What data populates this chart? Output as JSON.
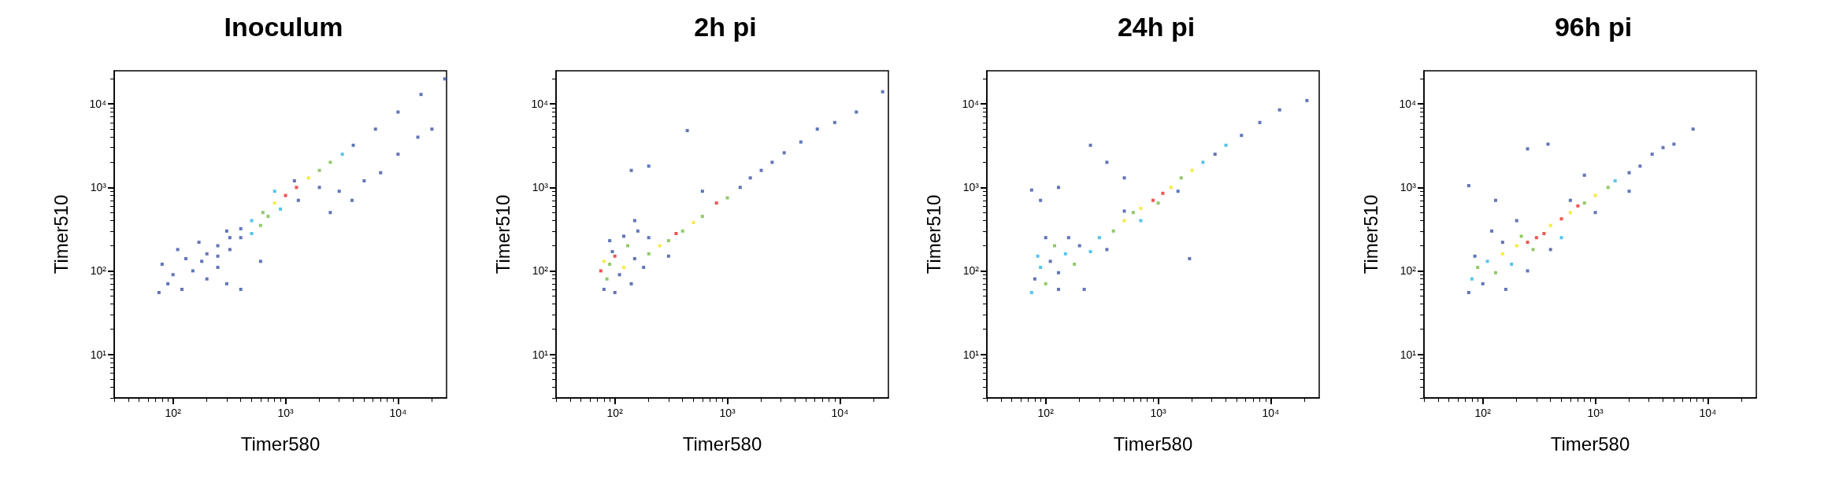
{
  "chart_data": [
    {
      "type": "scatter",
      "title": "Inoculum",
      "xlabel": "Timer580",
      "ylabel": "Timer510",
      "log": "xy",
      "marker": "square",
      "xlim": [
        30,
        27000
      ],
      "ylim": [
        3,
        25000
      ],
      "xticks": [
        {
          "value": 30,
          "label": null
        },
        {
          "value": 40,
          "label": null
        },
        {
          "value": 50,
          "label": null
        },
        {
          "value": 60,
          "label": null
        },
        {
          "value": 70,
          "label": null
        },
        {
          "value": 80,
          "label": null
        },
        {
          "value": 90,
          "label": null
        },
        {
          "value": 100,
          "label": "10²"
        },
        {
          "value": 200,
          "label": null
        },
        {
          "value": 300,
          "label": null
        },
        {
          "value": 400,
          "label": null
        },
        {
          "value": 500,
          "label": null
        },
        {
          "value": 600,
          "label": null
        },
        {
          "value": 700,
          "label": null
        },
        {
          "value": 800,
          "label": null
        },
        {
          "value": 900,
          "label": null
        },
        {
          "value": 1000,
          "label": "10³"
        },
        {
          "value": 2000,
          "label": null
        },
        {
          "value": 3000,
          "label": null
        },
        {
          "value": 4000,
          "label": null
        },
        {
          "value": 5000,
          "label": null
        },
        {
          "value": 6000,
          "label": null
        },
        {
          "value": 7000,
          "label": null
        },
        {
          "value": 8000,
          "label": null
        },
        {
          "value": 9000,
          "label": null
        },
        {
          "value": 10000,
          "label": "10⁴"
        },
        {
          "value": 20000,
          "label": null
        }
      ],
      "yticks": [
        {
          "value": 3,
          "label": null
        },
        {
          "value": 4,
          "label": null
        },
        {
          "value": 5,
          "label": null
        },
        {
          "value": 6,
          "label": null
        },
        {
          "value": 7,
          "label": null
        },
        {
          "value": 8,
          "label": null
        },
        {
          "value": 9,
          "label": null
        },
        {
          "value": 10,
          "label": "10¹"
        },
        {
          "value": 20,
          "label": null
        },
        {
          "value": 30,
          "label": null
        },
        {
          "value": 40,
          "label": null
        },
        {
          "value": 50,
          "label": null
        },
        {
          "value": 60,
          "label": null
        },
        {
          "value": 70,
          "label": null
        },
        {
          "value": 80,
          "label": null
        },
        {
          "value": 90,
          "label": null
        },
        {
          "value": 100,
          "label": "10²"
        },
        {
          "value": 200,
          "label": null
        },
        {
          "value": 300,
          "label": null
        },
        {
          "value": 400,
          "label": null
        },
        {
          "value": 500,
          "label": null
        },
        {
          "value": 600,
          "label": null
        },
        {
          "value": 700,
          "label": null
        },
        {
          "value": 800,
          "label": null
        },
        {
          "value": 900,
          "label": null
        },
        {
          "value": 1000,
          "label": "10³"
        },
        {
          "value": 2000,
          "label": null
        },
        {
          "value": 3000,
          "label": null
        },
        {
          "value": 4000,
          "label": null
        },
        {
          "value": 5000,
          "label": null
        },
        {
          "value": 6000,
          "label": null
        },
        {
          "value": 7000,
          "label": null
        },
        {
          "value": 8000,
          "label": null
        },
        {
          "value": 9000,
          "label": null
        },
        {
          "value": 10000,
          "label": "10⁴"
        },
        {
          "value": 20000,
          "label": null
        }
      ],
      "x": [
        26000,
        16000,
        10000,
        6300,
        4000,
        3200,
        2500,
        2000,
        1600,
        1250,
        1000,
        800,
        630,
        500,
        400,
        320,
        250,
        200,
        400,
        300,
        250,
        320,
        500,
        600,
        700,
        900,
        1300,
        2000,
        800,
        1200,
        80,
        100,
        120,
        90,
        150,
        200,
        75,
        130,
        180,
        110,
        250,
        300,
        400,
        600,
        170,
        3900,
        5000,
        7000,
        10000,
        15000,
        20000,
        2500,
        3000
      ],
      "values": [
        20000,
        13000,
        8000,
        5000,
        3200,
        2500,
        2000,
        1600,
        1300,
        1000,
        800,
        650,
        500,
        400,
        320,
        250,
        200,
        160,
        250,
        300,
        150,
        180,
        280,
        350,
        450,
        550,
        700,
        1000,
        900,
        1200,
        120,
        90,
        60,
        70,
        100,
        80,
        55,
        140,
        130,
        180,
        110,
        70,
        60,
        130,
        220,
        700,
        1200,
        1500,
        2500,
        4000,
        5000,
        500,
        900
      ],
      "colors": [
        "#3953a4",
        "#3953a4",
        "#3953a4",
        "#3953a4",
        "#3953a4",
        "#29b6e9",
        "#77bc43",
        "#77bc43",
        "#f4e61c",
        "#ee2a24",
        "#ee2a24",
        "#f4e61c",
        "#77bc43",
        "#29b6e9",
        "#3953a4",
        "#3953a4",
        "#3953a4",
        "#3953a4",
        "#3953a4",
        "#3953a4",
        "#3953a4",
        "#3953a4",
        "#29b6e9",
        "#77bc43",
        "#77bc43",
        "#29b6e9",
        "#3953a4",
        "#3953a4",
        "#29b6e9",
        "#3953a4",
        "#3953a4",
        "#3953a4",
        "#3953a4",
        "#3953a4",
        "#3953a4",
        "#3953a4",
        "#3953a4",
        "#3953a4",
        "#3953a4",
        "#3953a4",
        "#3953a4",
        "#3953a4",
        "#3953a4",
        "#3953a4",
        "#3953a4",
        "#3953a4",
        "#3953a4",
        "#3953a4",
        "#3953a4",
        "#3953a4",
        "#3953a4",
        "#3953a4",
        "#3953a4"
      ]
    },
    {
      "type": "scatter",
      "title": "2h pi",
      "xlabel": "Timer580",
      "ylabel": "Timer510",
      "log": "xy",
      "marker": "square",
      "xlim": [
        30,
        27000
      ],
      "ylim": [
        3,
        25000
      ],
      "xticks": [
        {
          "value": 30,
          "label": null
        },
        {
          "value": 40,
          "label": null
        },
        {
          "value": 50,
          "label": null
        },
        {
          "value": 60,
          "label": null
        },
        {
          "value": 70,
          "label": null
        },
        {
          "value": 80,
          "label": null
        },
        {
          "value": 90,
          "label": null
        },
        {
          "value": 100,
          "label": "10²"
        },
        {
          "value": 200,
          "label": null
        },
        {
          "value": 300,
          "label": null
        },
        {
          "value": 400,
          "label": null
        },
        {
          "value": 500,
          "label": null
        },
        {
          "value": 600,
          "label": null
        },
        {
          "value": 700,
          "label": null
        },
        {
          "value": 800,
          "label": null
        },
        {
          "value": 900,
          "label": null
        },
        {
          "value": 1000,
          "label": "10³"
        },
        {
          "value": 2000,
          "label": null
        },
        {
          "value": 3000,
          "label": null
        },
        {
          "value": 4000,
          "label": null
        },
        {
          "value": 5000,
          "label": null
        },
        {
          "value": 6000,
          "label": null
        },
        {
          "value": 7000,
          "label": null
        },
        {
          "value": 8000,
          "label": null
        },
        {
          "value": 9000,
          "label": null
        },
        {
          "value": 10000,
          "label": "10⁴"
        },
        {
          "value": 20000,
          "label": null
        }
      ],
      "yticks": [
        {
          "value": 3,
          "label": null
        },
        {
          "value": 4,
          "label": null
        },
        {
          "value": 5,
          "label": null
        },
        {
          "value": 6,
          "label": null
        },
        {
          "value": 7,
          "label": null
        },
        {
          "value": 8,
          "label": null
        },
        {
          "value": 9,
          "label": null
        },
        {
          "value": 10,
          "label": "10¹"
        },
        {
          "value": 20,
          "label": null
        },
        {
          "value": 30,
          "label": null
        },
        {
          "value": 40,
          "label": null
        },
        {
          "value": 50,
          "label": null
        },
        {
          "value": 60,
          "label": null
        },
        {
          "value": 70,
          "label": null
        },
        {
          "value": 80,
          "label": null
        },
        {
          "value": 90,
          "label": null
        },
        {
          "value": 100,
          "label": "10²"
        },
        {
          "value": 200,
          "label": null
        },
        {
          "value": 300,
          "label": null
        },
        {
          "value": 400,
          "label": null
        },
        {
          "value": 500,
          "label": null
        },
        {
          "value": 600,
          "label": null
        },
        {
          "value": 700,
          "label": null
        },
        {
          "value": 800,
          "label": null
        },
        {
          "value": 900,
          "label": null
        },
        {
          "value": 1000,
          "label": "10³"
        },
        {
          "value": 2000,
          "label": null
        },
        {
          "value": 3000,
          "label": null
        },
        {
          "value": 4000,
          "label": null
        },
        {
          "value": 5000,
          "label": null
        },
        {
          "value": 6000,
          "label": null
        },
        {
          "value": 7000,
          "label": null
        },
        {
          "value": 8000,
          "label": null
        },
        {
          "value": 9000,
          "label": null
        },
        {
          "value": 10000,
          "label": "10⁴"
        },
        {
          "value": 20000,
          "label": null
        }
      ],
      "x": [
        75,
        80,
        90,
        100,
        85,
        110,
        120,
        95,
        130,
        150,
        80,
        100,
        140,
        180,
        200,
        250,
        300,
        350,
        400,
        200,
        160,
        120,
        90,
        300,
        500,
        600,
        800,
        1000,
        1300,
        1600,
        2000,
        2500,
        3200,
        4500,
        6300,
        9000,
        14000,
        24000,
        440,
        140,
        200,
        600,
        150
      ],
      "values": [
        100,
        130,
        120,
        150,
        80,
        90,
        110,
        170,
        200,
        140,
        60,
        55,
        70,
        110,
        160,
        200,
        230,
        280,
        300,
        250,
        300,
        260,
        230,
        150,
        380,
        450,
        650,
        750,
        1000,
        1300,
        1600,
        2000,
        2600,
        3500,
        5000,
        6000,
        8000,
        14000,
        4800,
        1600,
        1800,
        900,
        400
      ],
      "colors": [
        "#ee2a24",
        "#f4e61c",
        "#77bc43",
        "#ee2a24",
        "#77bc43",
        "#3953a4",
        "#f4e61c",
        "#3953a4",
        "#77bc43",
        "#3953a4",
        "#3953a4",
        "#3953a4",
        "#3953a4",
        "#3953a4",
        "#77bc43",
        "#f4e61c",
        "#77bc43",
        "#ee2a24",
        "#77bc43",
        "#3953a4",
        "#3953a4",
        "#3953a4",
        "#3953a4",
        "#3953a4",
        "#f4e61c",
        "#77bc43",
        "#ee2a24",
        "#77bc43",
        "#3953a4",
        "#3953a4",
        "#3953a4",
        "#3953a4",
        "#3953a4",
        "#3953a4",
        "#3953a4",
        "#3953a4",
        "#3953a4",
        "#3953a4",
        "#3953a4",
        "#3953a4",
        "#3953a4",
        "#3953a4",
        "#3953a4"
      ]
    },
    {
      "type": "scatter",
      "title": "24h pi",
      "xlabel": "Timer580",
      "ylabel": "Timer510",
      "log": "xy",
      "marker": "square",
      "xlim": [
        30,
        27000
      ],
      "ylim": [
        3,
        25000
      ],
      "xticks": [
        {
          "value": 30,
          "label": null
        },
        {
          "value": 40,
          "label": null
        },
        {
          "value": 50,
          "label": null
        },
        {
          "value": 60,
          "label": null
        },
        {
          "value": 70,
          "label": null
        },
        {
          "value": 80,
          "label": null
        },
        {
          "value": 90,
          "label": null
        },
        {
          "value": 100,
          "label": "10²"
        },
        {
          "value": 200,
          "label": null
        },
        {
          "value": 300,
          "label": null
        },
        {
          "value": 400,
          "label": null
        },
        {
          "value": 500,
          "label": null
        },
        {
          "value": 600,
          "label": null
        },
        {
          "value": 700,
          "label": null
        },
        {
          "value": 800,
          "label": null
        },
        {
          "value": 900,
          "label": null
        },
        {
          "value": 1000,
          "label": "10³"
        },
        {
          "value": 2000,
          "label": null
        },
        {
          "value": 3000,
          "label": null
        },
        {
          "value": 4000,
          "label": null
        },
        {
          "value": 5000,
          "label": null
        },
        {
          "value": 6000,
          "label": null
        },
        {
          "value": 7000,
          "label": null
        },
        {
          "value": 8000,
          "label": null
        },
        {
          "value": 9000,
          "label": null
        },
        {
          "value": 10000,
          "label": "10⁴"
        },
        {
          "value": 20000,
          "label": null
        }
      ],
      "yticks": [
        {
          "value": 3,
          "label": null
        },
        {
          "value": 4,
          "label": null
        },
        {
          "value": 5,
          "label": null
        },
        {
          "value": 6,
          "label": null
        },
        {
          "value": 7,
          "label": null
        },
        {
          "value": 8,
          "label": null
        },
        {
          "value": 9,
          "label": null
        },
        {
          "value": 10,
          "label": "10¹"
        },
        {
          "value": 20,
          "label": null
        },
        {
          "value": 30,
          "label": null
        },
        {
          "value": 40,
          "label": null
        },
        {
          "value": 50,
          "label": null
        },
        {
          "value": 60,
          "label": null
        },
        {
          "value": 70,
          "label": null
        },
        {
          "value": 80,
          "label": null
        },
        {
          "value": 90,
          "label": null
        },
        {
          "value": 100,
          "label": "10²"
        },
        {
          "value": 200,
          "label": null
        },
        {
          "value": 300,
          "label": null
        },
        {
          "value": 400,
          "label": null
        },
        {
          "value": 500,
          "label": null
        },
        {
          "value": 600,
          "label": null
        },
        {
          "value": 700,
          "label": null
        },
        {
          "value": 800,
          "label": null
        },
        {
          "value": 900,
          "label": null
        },
        {
          "value": 1000,
          "label": "10³"
        },
        {
          "value": 2000,
          "label": null
        },
        {
          "value": 3000,
          "label": null
        },
        {
          "value": 4000,
          "label": null
        },
        {
          "value": 5000,
          "label": null
        },
        {
          "value": 6000,
          "label": null
        },
        {
          "value": 7000,
          "label": null
        },
        {
          "value": 8000,
          "label": null
        },
        {
          "value": 9000,
          "label": null
        },
        {
          "value": 10000,
          "label": "10⁴"
        },
        {
          "value": 20000,
          "label": null
        }
      ],
      "x": [
        75,
        80,
        90,
        100,
        110,
        85,
        130,
        150,
        180,
        200,
        250,
        120,
        100,
        160,
        300,
        350,
        220,
        130,
        400,
        500,
        600,
        700,
        900,
        1100,
        1300,
        1600,
        2000,
        2500,
        3200,
        4000,
        5500,
        8000,
        12000,
        21000,
        700,
        1000,
        500,
        1500,
        250,
        75,
        1900,
        130,
        500,
        350,
        90
      ],
      "values": [
        55,
        80,
        110,
        70,
        130,
        150,
        95,
        160,
        120,
        200,
        170,
        200,
        250,
        250,
        250,
        180,
        60,
        60,
        300,
        400,
        500,
        560,
        700,
        850,
        1000,
        1300,
        1600,
        2000,
        2500,
        3200,
        4200,
        6000,
        8500,
        11000,
        400,
        650,
        520,
        900,
        3200,
        930,
        140,
        1000,
        1300,
        2000,
        700
      ],
      "colors": [
        "#29b6e9",
        "#3953a4",
        "#29b6e9",
        "#77bc43",
        "#3953a4",
        "#29b6e9",
        "#3953a4",
        "#29b6e9",
        "#77bc43",
        "#3953a4",
        "#29b6e9",
        "#77bc43",
        "#3953a4",
        "#3953a4",
        "#29b6e9",
        "#3953a4",
        "#3953a4",
        "#3953a4",
        "#77bc43",
        "#f4e61c",
        "#77bc43",
        "#f4e61c",
        "#ee2a24",
        "#ee2a24",
        "#f4e61c",
        "#77bc43",
        "#f4e61c",
        "#29b6e9",
        "#3953a4",
        "#29b6e9",
        "#3953a4",
        "#3953a4",
        "#3953a4",
        "#3953a4",
        "#29b6e9",
        "#77bc43",
        "#3953a4",
        "#3953a4",
        "#3953a4",
        "#3953a4",
        "#3953a4",
        "#3953a4",
        "#3953a4",
        "#3953a4",
        "#3953a4"
      ]
    },
    {
      "type": "scatter",
      "title": "96h pi",
      "xlabel": "Timer580",
      "ylabel": "Timer510",
      "log": "xy",
      "marker": "square",
      "xlim": [
        30,
        27000
      ],
      "ylim": [
        3,
        25000
      ],
      "xticks": [
        {
          "value": 30,
          "label": null
        },
        {
          "value": 40,
          "label": null
        },
        {
          "value": 50,
          "label": null
        },
        {
          "value": 60,
          "label": null
        },
        {
          "value": 70,
          "label": null
        },
        {
          "value": 80,
          "label": null
        },
        {
          "value": 90,
          "label": null
        },
        {
          "value": 100,
          "label": "10²"
        },
        {
          "value": 200,
          "label": null
        },
        {
          "value": 300,
          "label": null
        },
        {
          "value": 400,
          "label": null
        },
        {
          "value": 500,
          "label": null
        },
        {
          "value": 600,
          "label": null
        },
        {
          "value": 700,
          "label": null
        },
        {
          "value": 800,
          "label": null
        },
        {
          "value": 900,
          "label": null
        },
        {
          "value": 1000,
          "label": "10³"
        },
        {
          "value": 2000,
          "label": null
        },
        {
          "value": 3000,
          "label": null
        },
        {
          "value": 4000,
          "label": null
        },
        {
          "value": 5000,
          "label": null
        },
        {
          "value": 6000,
          "label": null
        },
        {
          "value": 7000,
          "label": null
        },
        {
          "value": 8000,
          "label": null
        },
        {
          "value": 9000,
          "label": null
        },
        {
          "value": 10000,
          "label": "10⁴"
        },
        {
          "value": 20000,
          "label": null
        }
      ],
      "yticks": [
        {
          "value": 3,
          "label": null
        },
        {
          "value": 4,
          "label": null
        },
        {
          "value": 5,
          "label": null
        },
        {
          "value": 6,
          "label": null
        },
        {
          "value": 7,
          "label": null
        },
        {
          "value": 8,
          "label": null
        },
        {
          "value": 9,
          "label": null
        },
        {
          "value": 10,
          "label": "10¹"
        },
        {
          "value": 20,
          "label": null
        },
        {
          "value": 30,
          "label": null
        },
        {
          "value": 40,
          "label": null
        },
        {
          "value": 50,
          "label": null
        },
        {
          "value": 60,
          "label": null
        },
        {
          "value": 70,
          "label": null
        },
        {
          "value": 80,
          "label": null
        },
        {
          "value": 90,
          "label": null
        },
        {
          "value": 100,
          "label": "10²"
        },
        {
          "value": 200,
          "label": null
        },
        {
          "value": 300,
          "label": null
        },
        {
          "value": 400,
          "label": null
        },
        {
          "value": 500,
          "label": null
        },
        {
          "value": 600,
          "label": null
        },
        {
          "value": 700,
          "label": null
        },
        {
          "value": 800,
          "label": null
        },
        {
          "value": 900,
          "label": null
        },
        {
          "value": 1000,
          "label": "10³"
        },
        {
          "value": 2000,
          "label": null
        },
        {
          "value": 3000,
          "label": null
        },
        {
          "value": 4000,
          "label": null
        },
        {
          "value": 5000,
          "label": null
        },
        {
          "value": 6000,
          "label": null
        },
        {
          "value": 7000,
          "label": null
        },
        {
          "value": 8000,
          "label": null
        },
        {
          "value": 9000,
          "label": null
        },
        {
          "value": 10000,
          "label": "10⁴"
        },
        {
          "value": 20000,
          "label": null
        }
      ],
      "x": [
        75,
        80,
        90,
        100,
        110,
        85,
        130,
        150,
        180,
        200,
        250,
        300,
        350,
        280,
        220,
        400,
        500,
        600,
        700,
        800,
        1000,
        1300,
        1500,
        2000,
        2500,
        3200,
        4000,
        5000,
        7400,
        160,
        250,
        400,
        500,
        120,
        200,
        150,
        1000,
        2000,
        600,
        75,
        250,
        380,
        130,
        800
      ],
      "values": [
        55,
        80,
        110,
        70,
        130,
        150,
        95,
        160,
        120,
        200,
        220,
        250,
        280,
        180,
        260,
        350,
        420,
        500,
        600,
        650,
        800,
        1000,
        1200,
        1500,
        1800,
        2500,
        3000,
        3300,
        5000,
        60,
        100,
        180,
        250,
        300,
        400,
        220,
        500,
        900,
        700,
        1050,
        2900,
        3300,
        700,
        1400
      ],
      "colors": [
        "#3953a4",
        "#29b6e9",
        "#77bc43",
        "#3953a4",
        "#29b6e9",
        "#3953a4",
        "#77bc43",
        "#f4e61c",
        "#29b6e9",
        "#f4e61c",
        "#ee2a24",
        "#ee2a24",
        "#ee2a24",
        "#77bc43",
        "#77bc43",
        "#f4e61c",
        "#ee2a24",
        "#f4e61c",
        "#ee2a24",
        "#77bc43",
        "#f4e61c",
        "#77bc43",
        "#29b6e9",
        "#3953a4",
        "#3953a4",
        "#3953a4",
        "#3953a4",
        "#3953a4",
        "#3953a4",
        "#3953a4",
        "#3953a4",
        "#3953a4",
        "#29b6e9",
        "#3953a4",
        "#3953a4",
        "#3953a4",
        "#3953a4",
        "#3953a4",
        "#3953a4",
        "#3953a4",
        "#3953a4",
        "#3953a4",
        "#3953a4",
        "#3953a4"
      ]
    }
  ]
}
